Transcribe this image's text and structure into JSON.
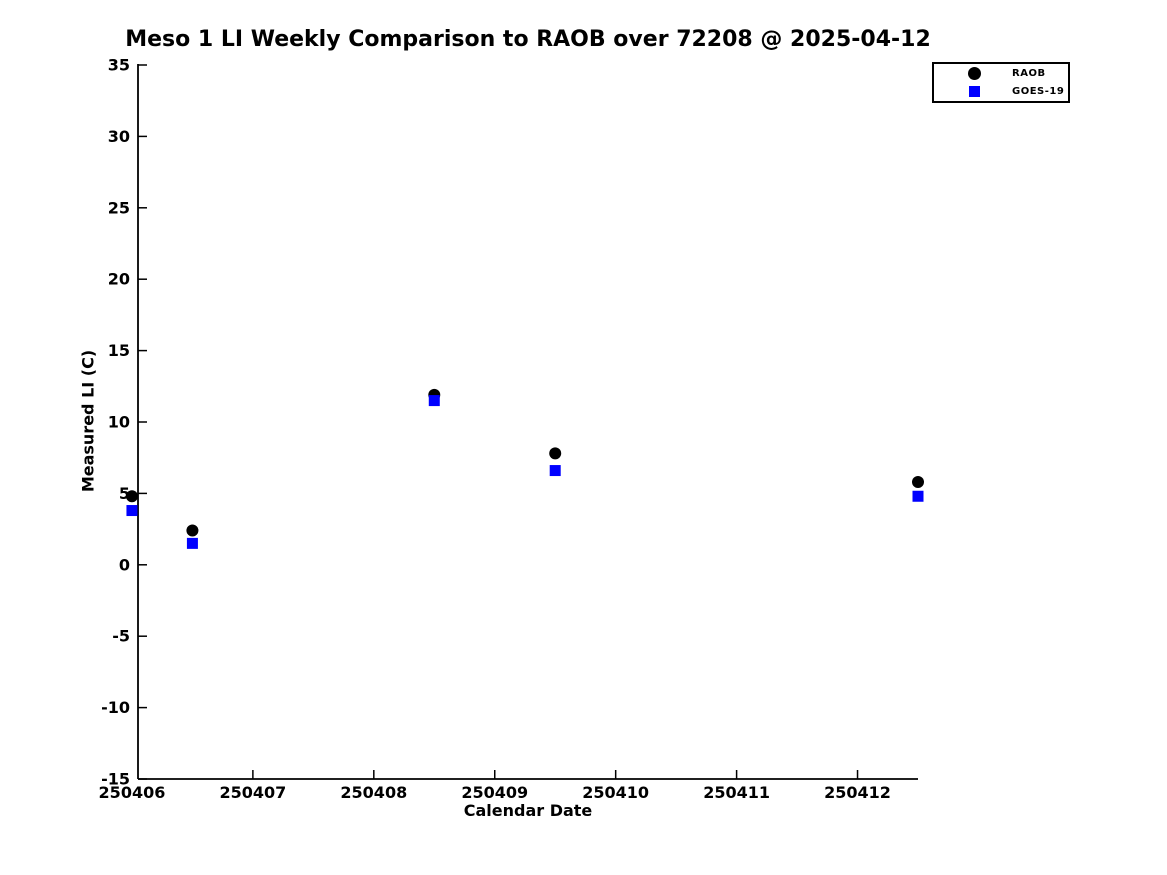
{
  "title": "Meso 1 LI Weekly Comparison to RAOB over 72208 @ 2025-04-12",
  "colors": {
    "background": "#ffffff",
    "axis": "#000000",
    "raob": "#000000",
    "goes19": "#0000ff"
  },
  "chart_data": {
    "type": "scatter",
    "title": "Meso 1 LI Weekly Comparison to RAOB over 72208 @ 2025-04-12",
    "xlabel": "Calendar Date",
    "ylabel": "Measured LI (C)",
    "x": [
      250406.0,
      250406.5,
      250408.5,
      250409.5,
      250412.5
    ],
    "series": [
      {
        "name": "RAOB",
        "marker": "circle",
        "color": "#000000",
        "values": [
          4.8,
          2.4,
          11.9,
          7.8,
          5.8
        ]
      },
      {
        "name": "GOES-19",
        "marker": "square",
        "color": "#0000ff",
        "values": [
          3.8,
          1.5,
          11.5,
          6.6,
          4.8
        ]
      }
    ],
    "xlim": [
      250406.05,
      250412.5
    ],
    "ylim": [
      -15,
      35
    ],
    "xticks": [
      250406,
      250407,
      250408,
      250409,
      250410,
      250411,
      250412
    ],
    "yticks": [
      -15,
      -10,
      -5,
      0,
      5,
      10,
      15,
      20,
      25,
      30,
      35
    ],
    "grid": false,
    "legend_position": "top-right-outside"
  }
}
